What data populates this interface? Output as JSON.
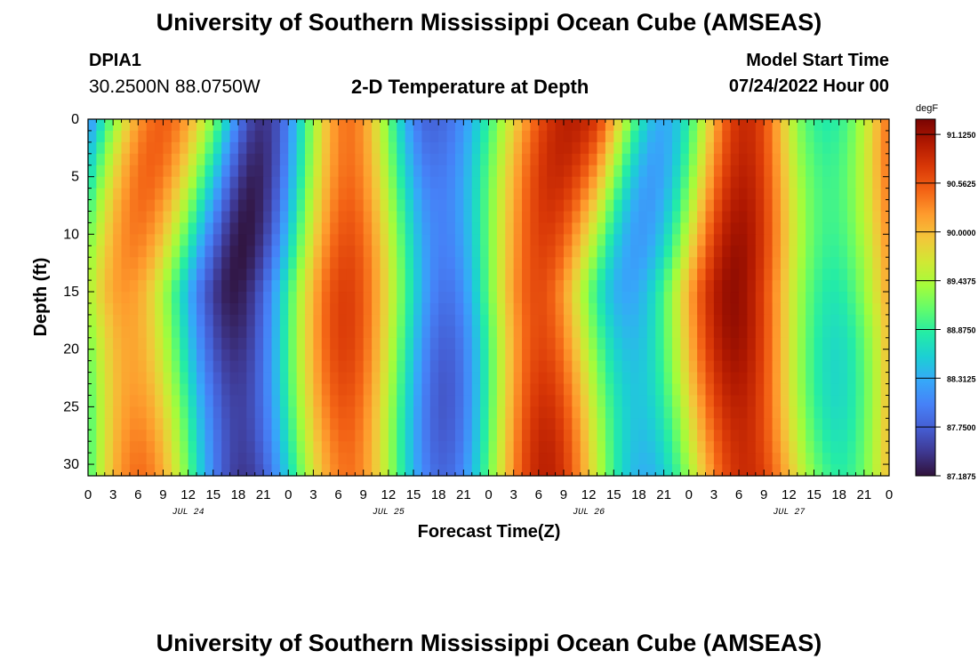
{
  "header": {
    "title": "University of Southern Mississippi Ocean Cube (AMSEAS)",
    "station": "DPIA1",
    "coords": "30.2500N  88.0750W",
    "subtitle": "2-D Temperature at Depth",
    "model_start_label": "Model Start Time",
    "model_start_value": "07/24/2022 Hour 00"
  },
  "footer": {
    "title": "University of Southern Mississippi Ocean Cube (AMSEAS)"
  },
  "chart_data": {
    "type": "heatmap",
    "title": "2-D Temperature at Depth",
    "xlabel": "Forecast Time(Z)",
    "ylabel": "Depth (ft)",
    "x_tick_labels": [
      "0",
      "3",
      "6",
      "9",
      "12",
      "15",
      "18",
      "21",
      "0",
      "3",
      "6",
      "9",
      "12",
      "15",
      "18",
      "21",
      "0",
      "3",
      "6",
      "9",
      "12",
      "15",
      "18",
      "21",
      "0",
      "3",
      "6",
      "9",
      "12",
      "15",
      "18",
      "21",
      "0"
    ],
    "x_range_hours": [
      0,
      96
    ],
    "day_labels": [
      {
        "label": "JUL 24",
        "hour": 12
      },
      {
        "label": "JUL 25",
        "hour": 36
      },
      {
        "label": "JUL 26",
        "hour": 60
      },
      {
        "label": "JUL 27",
        "hour": 84
      }
    ],
    "y_ticks": [
      0,
      5,
      10,
      15,
      20,
      25,
      30
    ],
    "y_tick_labels": [
      "0",
      "5",
      "10",
      "15",
      "20",
      "25",
      "30"
    ],
    "y_range_ft": [
      0,
      31
    ],
    "colorbar": {
      "unit": "degF",
      "min": 87.1875,
      "max": 91.3,
      "labels": [
        "91.1250",
        "90.5625",
        "90.0000",
        "89.4375",
        "88.8750",
        "88.3125",
        "87.7500",
        "87.1875"
      ],
      "colors": [
        "#30123b",
        "#3e3891",
        "#455ed3",
        "#4681f7",
        "#36a8f9",
        "#1ccfd4",
        "#24eca6",
        "#61fc6c",
        "#a4fc3b",
        "#d1e834",
        "#f3c63a",
        "#fe9b2d",
        "#f36315",
        "#d93807",
        "#b11901",
        "#7a0402"
      ]
    },
    "field_description": {
      "depth_anchors_ft": [
        0,
        15,
        31
      ],
      "boundary_hours": [
        [
          [
            -5,
            4.5
          ],
          [
            15.8,
            7.5
          ],
          [
            40.5,
            3.5
          ],
          [
            61,
            8.5
          ],
          [
            85.5,
            3
          ]
        ],
        [
          [
            -5,
            1.5
          ],
          [
            15,
            3.5
          ],
          [
            39,
            5
          ],
          [
            63,
            3
          ],
          [
            86,
            3
          ]
        ],
        [
          [
            -5,
            2.5
          ],
          [
            9,
            4
          ],
          [
            31,
            5
          ],
          [
            59.5,
            4.5
          ],
          [
            84,
            4.5
          ]
        ]
      ]
    }
  }
}
